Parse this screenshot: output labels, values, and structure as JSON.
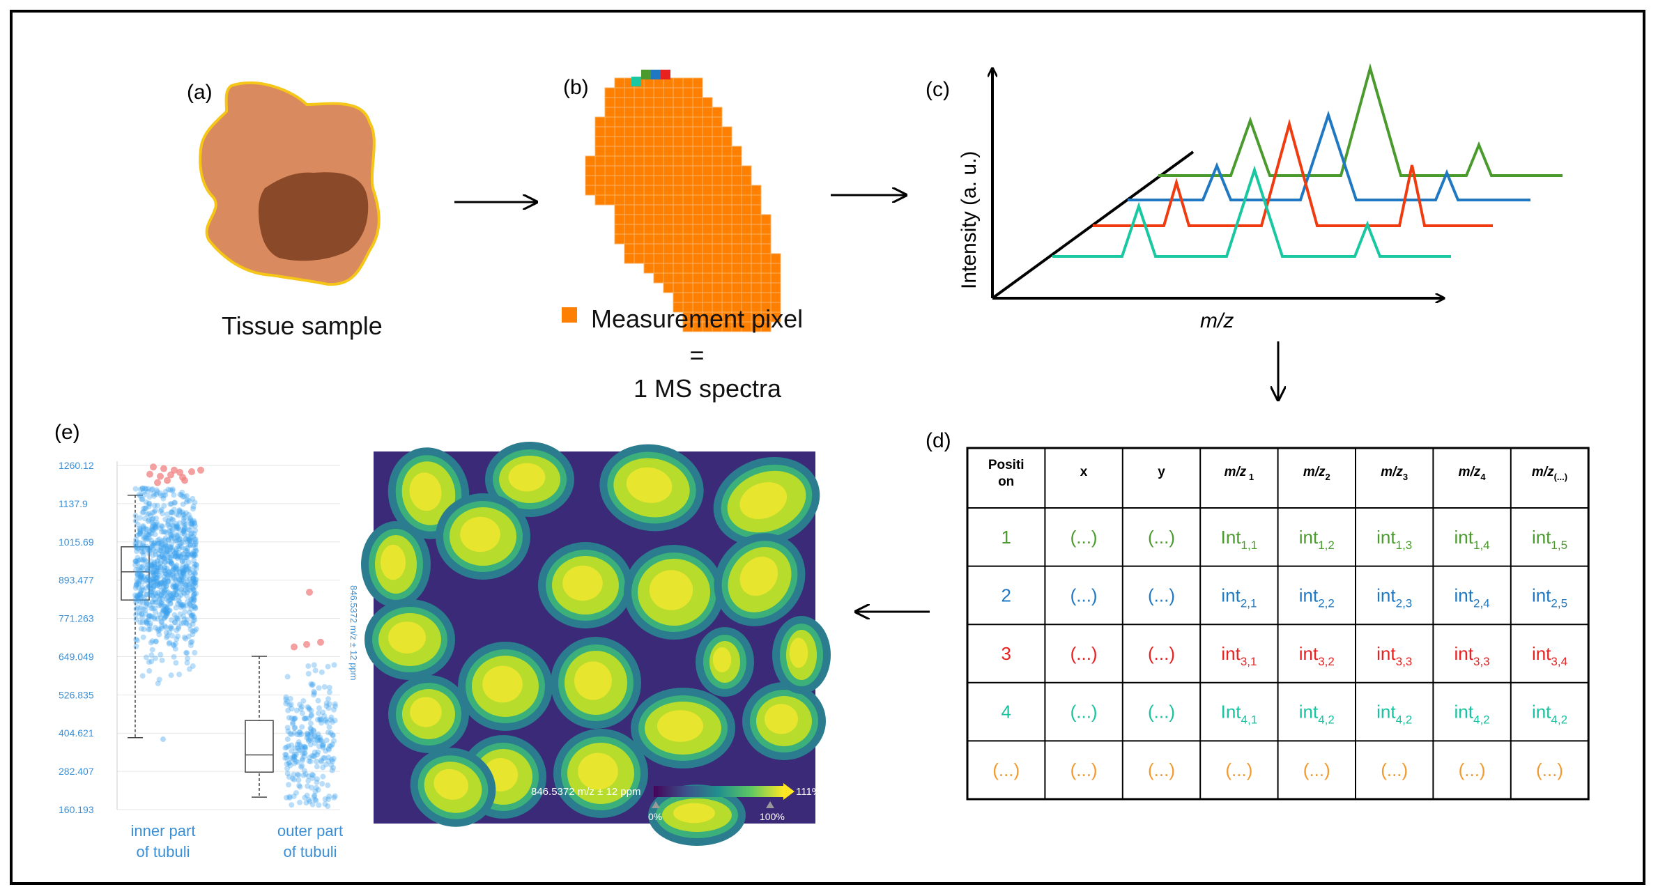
{
  "panels": {
    "a": {
      "label": "(a)",
      "caption": "Tissue sample"
    },
    "b": {
      "label": "(b)",
      "legend": "Measurement pixel",
      "equals": "=",
      "spectra": "1 MS spectra"
    },
    "c": {
      "label": "(c)",
      "ylabel": "Intensity (a. u.)",
      "xlabel": "m/z"
    },
    "d": {
      "label": "(d)"
    },
    "e": {
      "label": "(e)"
    }
  },
  "table": {
    "headers": [
      "Positi on",
      "x",
      "y",
      "m/z 1",
      "m/z2",
      "m/z3",
      "m/z4",
      "m/z(...)"
    ],
    "header_parts": [
      {
        "main": "Positi",
        "sub": "on"
      },
      {
        "main": "x",
        "sub": ""
      },
      {
        "main": "y",
        "sub": ""
      },
      {
        "main": "m/z",
        "sub": "1"
      },
      {
        "main": "m/z",
        "sub": "2"
      },
      {
        "main": "m/z",
        "sub": "3"
      },
      {
        "main": "m/z",
        "sub": "4"
      },
      {
        "main": "m/z",
        "sub": "(...)"
      }
    ],
    "rows": [
      {
        "color": "#4a9a2e",
        "cells": [
          {
            "main": "1",
            "sub": ""
          },
          {
            "main": "(...)",
            "sub": ""
          },
          {
            "main": "(...)",
            "sub": ""
          },
          {
            "main": "Int",
            "sub": "1,1"
          },
          {
            "main": "int",
            "sub": "1,2"
          },
          {
            "main": "int",
            "sub": "1,3"
          },
          {
            "main": "int",
            "sub": "1,4"
          },
          {
            "main": "int",
            "sub": "1,5"
          }
        ]
      },
      {
        "color": "#1f78c1",
        "cells": [
          {
            "main": "2",
            "sub": ""
          },
          {
            "main": "(...)",
            "sub": ""
          },
          {
            "main": "(...)",
            "sub": ""
          },
          {
            "main": "int",
            "sub": "2,1"
          },
          {
            "main": "int",
            "sub": "2,2"
          },
          {
            "main": "int",
            "sub": "2,3"
          },
          {
            "main": "int",
            "sub": "2,4"
          },
          {
            "main": "int",
            "sub": "2,5"
          }
        ]
      },
      {
        "color": "#e82020",
        "cells": [
          {
            "main": "3",
            "sub": ""
          },
          {
            "main": "(...)",
            "sub": ""
          },
          {
            "main": "(...)",
            "sub": ""
          },
          {
            "main": "int",
            "sub": "3,1"
          },
          {
            "main": "int",
            "sub": "3,2"
          },
          {
            "main": "int",
            "sub": "3,3"
          },
          {
            "main": "int",
            "sub": "3,3"
          },
          {
            "main": "int",
            "sub": "3,4"
          }
        ]
      },
      {
        "color": "#19c2a0",
        "cells": [
          {
            "main": "4",
            "sub": ""
          },
          {
            "main": "(...)",
            "sub": ""
          },
          {
            "main": "(...)",
            "sub": ""
          },
          {
            "main": "Int",
            "sub": "4,1"
          },
          {
            "main": "int",
            "sub": "4,2"
          },
          {
            "main": "int",
            "sub": "4,2"
          },
          {
            "main": "int",
            "sub": "4,2"
          },
          {
            "main": "int",
            "sub": "4,2"
          }
        ]
      },
      {
        "color": "#f29a2e",
        "cells": [
          {
            "main": "(...)",
            "sub": ""
          },
          {
            "main": "(...)",
            "sub": ""
          },
          {
            "main": "(...)",
            "sub": ""
          },
          {
            "main": "(...)",
            "sub": ""
          },
          {
            "main": "(...)",
            "sub": ""
          },
          {
            "main": "(...)",
            "sub": ""
          },
          {
            "main": "(...)",
            "sub": ""
          },
          {
            "main": "(...)",
            "sub": ""
          }
        ]
      }
    ]
  },
  "chart_data": {
    "type": "scatter",
    "title": "",
    "ylabel": "846.5372 m/z ± 12 ppm",
    "yticks": [
      "1260.12",
      "1137.9",
      "1015.69",
      "893.477",
      "771.263",
      "649.049",
      "526.835",
      "404.621",
      "282.407",
      "160.193"
    ],
    "ylim": [
      160.193,
      1260.12
    ],
    "groups": [
      {
        "name": "inner part of tubuli",
        "line1": "inner part",
        "line2": "of tubuli",
        "whisker_low": 390,
        "q1": 830,
        "median": 920,
        "q3": 1000,
        "whisker_high": 1165
      },
      {
        "name": "outer part of tubuli",
        "line1": "outer part",
        "line2": "of tubuli",
        "whisker_low": 200,
        "q1": 280,
        "median": 335,
        "q3": 445,
        "whisker_high": 650
      }
    ],
    "colors": {
      "points": "#3aa0ee",
      "outliers": "#f08080"
    }
  },
  "ion_image": {
    "scale_label": "846.5372 m/z ± 12 ppm",
    "min_label": "0%",
    "max_label": "100%",
    "over_label": "111%"
  },
  "colors": {
    "orange": "#ff7f00",
    "green": "#4a9a2e",
    "blue": "#1f78c1",
    "red": "#f03b10",
    "teal": "#19c8a0"
  }
}
